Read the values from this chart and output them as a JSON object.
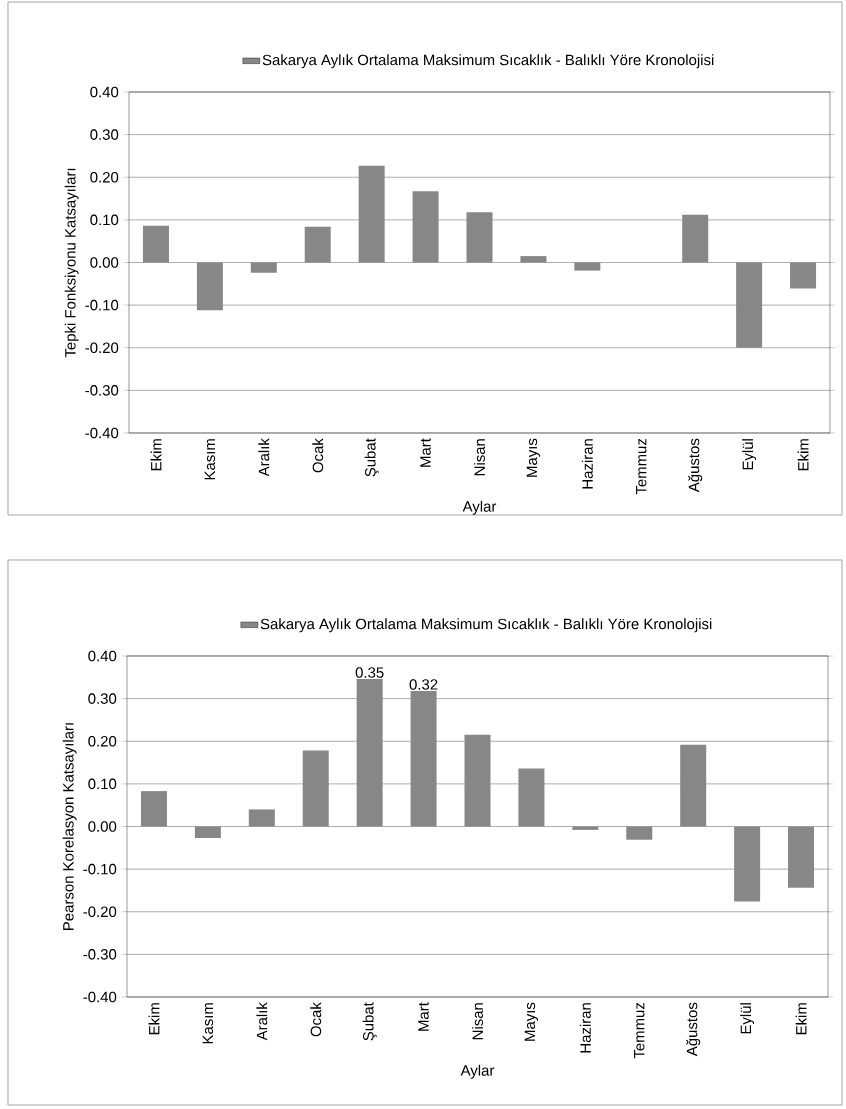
{
  "chart_data": [
    {
      "type": "bar",
      "categories": [
        "Ekim",
        "Kasım",
        "Aralık",
        "Ocak",
        "Şubat",
        "Mart",
        "Nisan",
        "Mayıs",
        "Haziran",
        "Temmuz",
        "Ağustos",
        "Eylül",
        "Ekim"
      ],
      "series": [
        {
          "name": "Sakarya Aylık Ortalama Maksimum Sıcaklık - Balıklı Yöre Kronolojisi",
          "color": "#878787",
          "values": [
            0.086,
            -0.112,
            -0.024,
            0.084,
            0.227,
            0.167,
            0.118,
            0.015,
            -0.019,
            0,
            0.112,
            -0.2,
            -0.061
          ]
        }
      ],
      "xlabel": "Aylar",
      "ylabel": "Tepki Fonksiyonu Katsayıları",
      "ylim": [
        -0.4,
        0.4
      ],
      "yticks": [
        {
          "value": -0.4,
          "label": "-0.40"
        },
        {
          "value": -0.3,
          "label": "-0.30"
        },
        {
          "value": -0.2,
          "label": "-0.20"
        },
        {
          "value": -0.1,
          "label": "-0.10"
        },
        {
          "value": 0,
          "label": "0.00"
        },
        {
          "value": 0.1,
          "label": "0.10"
        },
        {
          "value": 0.2,
          "label": "0.20"
        },
        {
          "value": 0.3,
          "label": "0.30"
        },
        {
          "value": 0.4,
          "label": "0.40"
        }
      ],
      "grid": "y",
      "legend": "top"
    },
    {
      "type": "bar",
      "categories": [
        "Ekim",
        "Kasım",
        "Aralık",
        "Ocak",
        "Şubat",
        "Mart",
        "Nisan",
        "Mayıs",
        "Haziran",
        "Temmuz",
        "Ağustos",
        "Eylül",
        "Ekim"
      ],
      "series": [
        {
          "name": "Sakarya Aylık Ortalama Maksimum Sıcaklık - Balıklı Yöre Kronolojisi",
          "color": "#878787",
          "values": [
            0.083,
            -0.027,
            0.04,
            0.178,
            0.346,
            0.318,
            0.215,
            0.136,
            -0.008,
            -0.031,
            0.192,
            -0.176,
            -0.144
          ],
          "value_labels": [
            null,
            null,
            null,
            null,
            "0.35",
            "0.32",
            null,
            null,
            null,
            null,
            null,
            null,
            null
          ]
        }
      ],
      "xlabel": "Aylar",
      "ylabel": "Pearson Korelasyon Katsayıları",
      "ylim": [
        -0.4,
        0.4
      ],
      "yticks": [
        {
          "value": -0.4,
          "label": "-0.40"
        },
        {
          "value": -0.3,
          "label": "-0.30"
        },
        {
          "value": -0.2,
          "label": "-0.20"
        },
        {
          "value": -0.1,
          "label": "-0.10"
        },
        {
          "value": 0,
          "label": "0.00"
        },
        {
          "value": 0.1,
          "label": "0.10"
        },
        {
          "value": 0.2,
          "label": "0.20"
        },
        {
          "value": 0.3,
          "label": "0.30"
        },
        {
          "value": 0.4,
          "label": "0.40"
        }
      ],
      "grid": "y",
      "legend": "top"
    }
  ]
}
